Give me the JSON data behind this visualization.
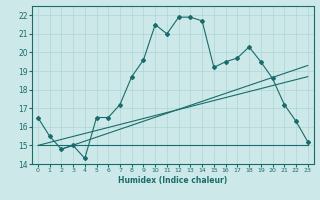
{
  "xlabel": "Humidex (Indice chaleur)",
  "bg_color": "#cce8e8",
  "line_color": "#1a6b6b",
  "grid_color": "#aed4d4",
  "xlim": [
    -0.5,
    23.5
  ],
  "ylim": [
    14,
    22.5
  ],
  "xticks": [
    0,
    1,
    2,
    3,
    4,
    5,
    6,
    7,
    8,
    9,
    10,
    11,
    12,
    13,
    14,
    15,
    16,
    17,
    18,
    19,
    20,
    21,
    22,
    23
  ],
  "yticks": [
    14,
    15,
    16,
    17,
    18,
    19,
    20,
    21,
    22
  ],
  "series1_x": [
    0,
    1,
    2,
    3,
    4,
    5,
    6,
    7,
    8,
    9,
    10,
    11,
    12,
    13,
    14,
    15,
    16,
    17,
    18,
    19,
    20,
    21,
    22,
    23
  ],
  "series1_y": [
    16.5,
    15.5,
    14.8,
    15.0,
    14.3,
    16.5,
    16.5,
    17.2,
    18.7,
    19.6,
    21.5,
    21.0,
    21.9,
    21.9,
    21.7,
    19.2,
    19.5,
    19.7,
    20.3,
    19.5,
    18.6,
    17.2,
    16.3,
    15.2
  ],
  "line1_x": [
    0,
    23
  ],
  "line1_y": [
    15.0,
    15.0
  ],
  "line2_x": [
    0,
    23
  ],
  "line2_y": [
    15.0,
    18.7
  ],
  "line3_x": [
    2,
    23
  ],
  "line3_y": [
    14.8,
    19.3
  ]
}
